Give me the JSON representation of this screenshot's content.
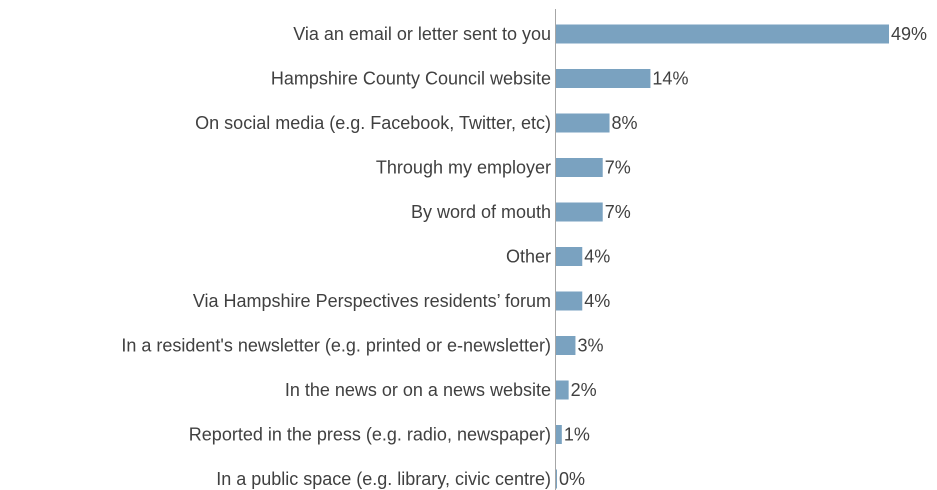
{
  "chart_data": {
    "type": "bar",
    "orientation": "horizontal",
    "title": "",
    "xlabel": "",
    "ylabel": "",
    "categories": [
      "Via an email or letter sent to you",
      "Hampshire County Council website",
      "On social media (e.g. Facebook, Twitter, etc)",
      "Through my employer",
      "By word of mouth",
      "Other",
      "Via Hampshire Perspectives residents’ forum",
      "In a resident's newsletter (e.g. printed or e-newsletter)",
      "In the news or on a news website",
      "Reported in the press (e.g. radio, newspaper)",
      "In a public space (e.g. library, civic centre)"
    ],
    "values": [
      49,
      14,
      8,
      7,
      7,
      4,
      4,
      3,
      2,
      1,
      0
    ],
    "data_labels": [
      "49%",
      "14%",
      "8%",
      "7%",
      "7%",
      "4%",
      "4%",
      "3%",
      "2%",
      "1%",
      "0%"
    ],
    "value_unit": "%",
    "xlim": [
      0,
      49
    ],
    "grid": false,
    "legend": "none",
    "colors": {
      "bar": "#7aa2c0",
      "axis": "#a6a6a6",
      "text": "#404040"
    }
  }
}
